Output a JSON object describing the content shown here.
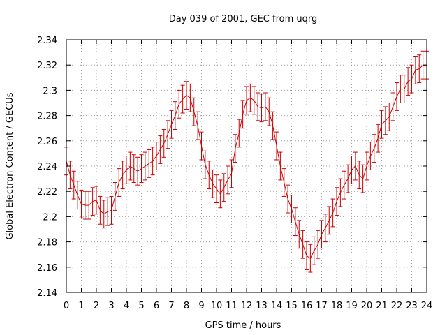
{
  "chart_data": {
    "type": "line",
    "title": "Day 039 of 2001, GEC from uqrg",
    "xlabel": "GPS time / hours",
    "ylabel": "Global Electron Content / GECUs",
    "xlim": [
      0,
      24
    ],
    "ylim": [
      2.14,
      2.34
    ],
    "grid": true,
    "x_ticks": [
      "0",
      "1",
      "2",
      "3",
      "4",
      "5",
      "6",
      "7",
      "8",
      "9",
      "10",
      "11",
      "12",
      "13",
      "14",
      "15",
      "16",
      "17",
      "18",
      "19",
      "20",
      "21",
      "22",
      "23",
      "24"
    ],
    "y_ticks": [
      "2.14",
      "2.16",
      "2.18",
      "2.2",
      "2.22",
      "2.24",
      "2.26",
      "2.28",
      "2.3",
      "2.32",
      "2.34"
    ],
    "series_color": "#cc0000",
    "error": 0.011,
    "x": [
      0.0,
      0.25,
      0.5,
      0.75,
      1.0,
      1.25,
      1.5,
      1.75,
      2.0,
      2.25,
      2.5,
      2.75,
      3.0,
      3.25,
      3.5,
      3.75,
      4.0,
      4.25,
      4.5,
      4.75,
      5.0,
      5.25,
      5.5,
      5.75,
      6.0,
      6.25,
      6.5,
      6.75,
      7.0,
      7.25,
      7.5,
      7.75,
      8.0,
      8.25,
      8.5,
      8.75,
      9.0,
      9.25,
      9.5,
      9.75,
      10.0,
      10.25,
      10.5,
      10.75,
      11.0,
      11.25,
      11.5,
      11.75,
      12.0,
      12.25,
      12.5,
      12.75,
      13.0,
      13.25,
      13.5,
      13.75,
      14.0,
      14.25,
      14.5,
      14.75,
      15.0,
      15.25,
      15.5,
      15.75,
      16.0,
      16.25,
      16.5,
      16.75,
      17.0,
      17.25,
      17.5,
      17.75,
      18.0,
      18.25,
      18.5,
      18.75,
      19.0,
      19.25,
      19.5,
      19.75,
      20.0,
      20.25,
      20.5,
      20.75,
      21.0,
      21.25,
      21.5,
      21.75,
      22.0,
      22.25,
      22.5,
      22.75,
      23.0,
      23.25,
      23.5,
      23.75,
      24.0
    ],
    "y": [
      2.244,
      2.233,
      2.225,
      2.217,
      2.21,
      2.209,
      2.209,
      2.212,
      2.213,
      2.205,
      2.202,
      2.204,
      2.205,
      2.216,
      2.227,
      2.233,
      2.237,
      2.24,
      2.238,
      2.236,
      2.238,
      2.24,
      2.242,
      2.244,
      2.248,
      2.253,
      2.258,
      2.265,
      2.273,
      2.28,
      2.289,
      2.293,
      2.296,
      2.294,
      2.283,
      2.272,
      2.256,
      2.241,
      2.233,
      2.226,
      2.222,
      2.218,
      2.223,
      2.229,
      2.234,
      2.254,
      2.266,
      2.281,
      2.292,
      2.294,
      2.292,
      2.287,
      2.286,
      2.287,
      2.283,
      2.272,
      2.256,
      2.24,
      2.227,
      2.214,
      2.206,
      2.196,
      2.186,
      2.178,
      2.169,
      2.167,
      2.173,
      2.178,
      2.186,
      2.191,
      2.197,
      2.203,
      2.212,
      2.219,
      2.225,
      2.23,
      2.237,
      2.24,
      2.233,
      2.23,
      2.24,
      2.248,
      2.254,
      2.262,
      2.273,
      2.276,
      2.279,
      2.287,
      2.295,
      2.301,
      2.301,
      2.307,
      2.309,
      2.316,
      2.317,
      2.32,
      2.32
    ]
  }
}
